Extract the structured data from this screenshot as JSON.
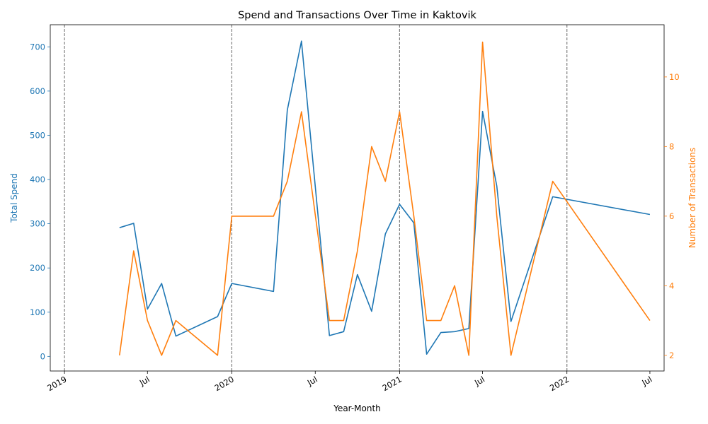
{
  "chart_data": {
    "type": "line",
    "title": "Spend and Transactions Over Time in Kaktovik",
    "xlabel": "Year-Month",
    "ylabel_left": "Total Spend",
    "ylabel_right": "Number of Transactions",
    "x_range": [
      "2018-12-01",
      "2022-08-01"
    ],
    "ylim_left": [
      -33,
      750
    ],
    "ylim_right": [
      1.55,
      11.5
    ],
    "x_ticks": [
      {
        "date": "2019-01-01",
        "label": "2019"
      },
      {
        "date": "2019-07-01",
        "label": "Jul"
      },
      {
        "date": "2020-01-01",
        "label": "2020"
      },
      {
        "date": "2020-07-01",
        "label": "Jul"
      },
      {
        "date": "2021-01-01",
        "label": "2021"
      },
      {
        "date": "2021-07-01",
        "label": "Jul"
      },
      {
        "date": "2022-01-01",
        "label": "2022"
      },
      {
        "date": "2022-07-01",
        "label": "Jul"
      }
    ],
    "y_ticks_left": [
      0,
      100,
      200,
      300,
      400,
      500,
      600,
      700
    ],
    "y_ticks_right": [
      2,
      4,
      6,
      8,
      10
    ],
    "year_lines": [
      "2019-01-01",
      "2020-01-01",
      "2021-01-01",
      "2022-01-01"
    ],
    "colors": {
      "spend": "#1f77b4",
      "transactions": "#ff7f0e",
      "year_line": "#808080"
    },
    "series": [
      {
        "axis": "left",
        "values": [
          [
            "2019-05-01",
            291
          ],
          [
            "2019-06-01",
            301
          ],
          [
            "2019-07-01",
            107
          ],
          [
            "2019-08-01",
            165
          ],
          [
            "2019-09-01",
            46
          ],
          [
            "2019-12-01",
            90
          ],
          [
            "2020-01-01",
            165
          ],
          [
            "2020-04-01",
            147
          ],
          [
            "2020-05-01",
            557
          ],
          [
            "2020-06-01",
            713
          ],
          [
            "2020-08-01",
            47
          ],
          [
            "2020-09-01",
            56
          ],
          [
            "2020-10-01",
            185
          ],
          [
            "2020-11-01",
            102
          ],
          [
            "2020-12-01",
            277
          ],
          [
            "2021-01-01",
            344
          ],
          [
            "2021-02-01",
            302
          ],
          [
            "2021-03-01",
            5
          ],
          [
            "2021-04-01",
            54
          ],
          [
            "2021-05-01",
            56
          ],
          [
            "2021-06-01",
            63
          ],
          [
            "2021-07-01",
            554
          ],
          [
            "2021-08-01",
            385
          ],
          [
            "2021-09-01",
            79
          ],
          [
            "2021-12-01",
            361
          ],
          [
            "2022-07-01",
            321
          ]
        ]
      },
      {
        "axis": "right",
        "values": [
          [
            "2019-05-01",
            2
          ],
          [
            "2019-06-01",
            5
          ],
          [
            "2019-07-01",
            3
          ],
          [
            "2019-08-01",
            2
          ],
          [
            "2019-09-01",
            3
          ],
          [
            "2019-12-01",
            2
          ],
          [
            "2020-01-01",
            6
          ],
          [
            "2020-04-01",
            6
          ],
          [
            "2020-05-01",
            7
          ],
          [
            "2020-06-01",
            9
          ],
          [
            "2020-08-01",
            3
          ],
          [
            "2020-09-01",
            3
          ],
          [
            "2020-10-01",
            5
          ],
          [
            "2020-11-01",
            8
          ],
          [
            "2020-12-01",
            7
          ],
          [
            "2021-01-01",
            9
          ],
          [
            "2021-02-01",
            6
          ],
          [
            "2021-03-01",
            3
          ],
          [
            "2021-04-01",
            3
          ],
          [
            "2021-05-01",
            4
          ],
          [
            "2021-06-01",
            2
          ],
          [
            "2021-07-01",
            11
          ],
          [
            "2021-08-01",
            6
          ],
          [
            "2021-09-01",
            2
          ],
          [
            "2021-12-01",
            7
          ],
          [
            "2022-07-01",
            3
          ]
        ]
      }
    ]
  }
}
